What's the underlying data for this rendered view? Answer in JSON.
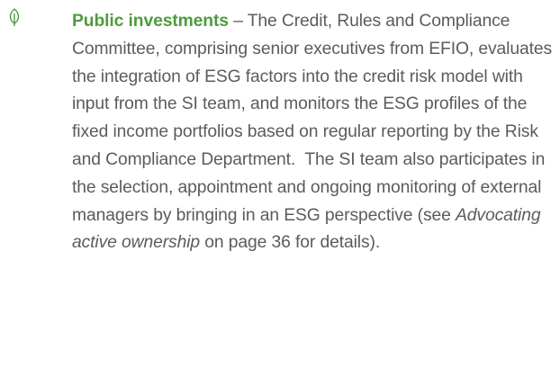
{
  "paragraph": {
    "heading": "Public investments",
    "text_before": " – The Credit, Rules and Compliance Committee, comprising senior executives from EFIO, evaluates the integration of ESG factors into the credit risk model with input from the SI team, and monitors the ESG profiles of the fixed income portfolios based on regular reporting by the Risk and Compliance Department.  The SI team also participates in the selection, appointment and ongoing monitoring of external managers by bringing in an ESG perspective (see ",
    "italic": "Advocating active ownership",
    "text_after": " on page 36 for details)."
  }
}
